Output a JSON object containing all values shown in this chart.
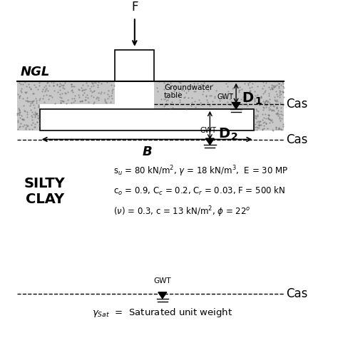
{
  "title": "",
  "bg_color": "#ffffff",
  "fig_size": [
    4.74,
    4.74
  ],
  "dpi": 100,
  "ngl_label": "NGL",
  "silty_clay_label": "SILTY\nCLAY",
  "f_label": "F",
  "b_label": "B",
  "gw_table_label": "Groundwater\ntable",
  "gwt_label": "GWT",
  "case_label": "Cas",
  "soil_color": "#c8c8c8",
  "soil_dot_color": "#555555",
  "line_color": "#000000",
  "text_color": "#000000"
}
